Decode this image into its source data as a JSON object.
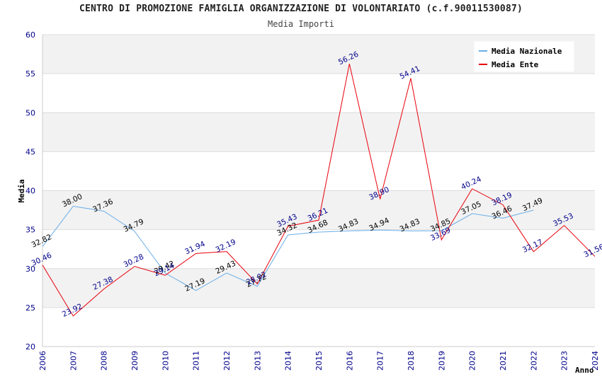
{
  "title": "CENTRO DI PROMOZIONE FAMIGLIA ORGANIZZAZIONE DI VOLONTARIATO (c.f.90011530087)",
  "subtitle": "Media Importi",
  "chart_data": {
    "type": "line",
    "ylabel": "Media",
    "xlabel": "Anno",
    "ylim": [
      20,
      60
    ],
    "yticks": [
      20,
      25,
      30,
      35,
      40,
      45,
      50,
      55,
      60
    ],
    "x": [
      2006,
      2007,
      2008,
      2009,
      2010,
      2011,
      2012,
      2013,
      2014,
      2015,
      2016,
      2017,
      2018,
      2019,
      2020,
      2021,
      2022,
      2023,
      2024
    ],
    "grid": true,
    "legend_position": "top-right",
    "series": [
      {
        "name": "Media Nazionale",
        "color": "#6aaee8",
        "label_color": "#000000",
        "values": [
          32.82,
          38.0,
          37.36,
          34.79,
          29.42,
          27.19,
          29.43,
          27.72,
          34.32,
          34.68,
          34.83,
          34.94,
          34.83,
          34.85,
          37.05,
          36.46,
          37.49,
          null,
          null
        ]
      },
      {
        "name": "Media Ente",
        "color": "#e8000b",
        "label_color": "#00008b",
        "values": [
          30.46,
          23.92,
          27.38,
          30.28,
          29.14,
          31.94,
          32.19,
          28.02,
          35.43,
          36.21,
          56.26,
          38.9,
          54.41,
          33.69,
          40.24,
          38.19,
          32.17,
          35.53,
          31.56
        ]
      }
    ]
  }
}
